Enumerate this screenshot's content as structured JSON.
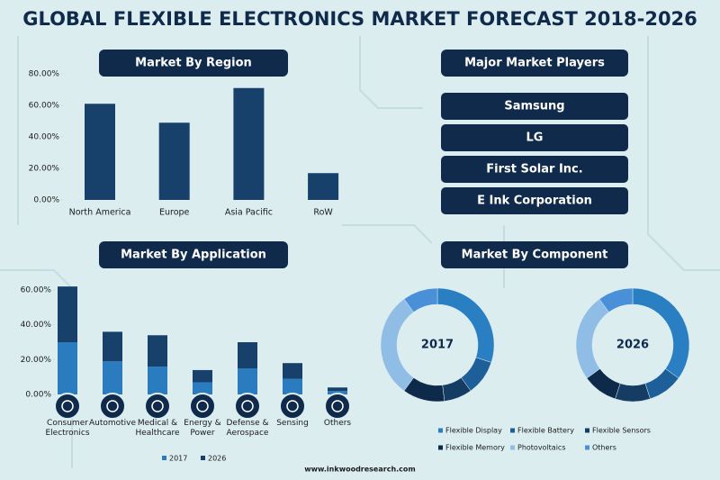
{
  "title": "GLOBAL FLEXIBLE ELECTRONICS MARKET FORECAST 2018-2026",
  "players": {
    "title": "Major Market Players",
    "items": [
      "Samsung",
      "LG",
      "First Solar Inc.",
      "E Ink Corporation"
    ]
  },
  "website": "www.inkwoodresearch.com",
  "chart_data": [
    {
      "type": "bar",
      "title": "Market By Region",
      "categories": [
        "North America",
        "Europe",
        "Asia Pacific",
        "RoW"
      ],
      "values": [
        61,
        49,
        71,
        17
      ],
      "color": "#17406b",
      "ylim": [
        0,
        80
      ],
      "yticks": [
        {
          "value": 0,
          "label": "0.00%"
        },
        {
          "value": 20,
          "label": "20.00%"
        },
        {
          "value": 40,
          "label": "40.00%"
        },
        {
          "value": 60,
          "label": "60.00%"
        },
        {
          "value": 80,
          "label": "80.00%"
        }
      ]
    },
    {
      "type": "stacked_bar",
      "title": "Market By Application",
      "categories": [
        "Consumer Electronics",
        "Automotive",
        "Medical & Healthcare",
        "Energy & Power",
        "Defense & Aerospace",
        "Sensing",
        "Others"
      ],
      "series": [
        {
          "name": "2017",
          "color": "#2b7bbf",
          "values": [
            30,
            19,
            16,
            7,
            15,
            9,
            2
          ]
        },
        {
          "name": "2026",
          "color": "#17406b",
          "values": [
            32,
            17,
            18,
            7,
            15,
            9,
            2
          ]
        }
      ],
      "ylim": [
        0,
        60
      ],
      "yticks": [
        {
          "value": 0,
          "label": "0.00%"
        },
        {
          "value": 20,
          "label": "20.00%"
        },
        {
          "value": 40,
          "label": "40.00%"
        },
        {
          "value": 60,
          "label": "60.00%"
        }
      ]
    },
    {
      "type": "donut",
      "title": "Market By Component",
      "categories": [
        "Flexible Display",
        "Flexible Battery",
        "Flexible Sensors",
        "Flexible Memory",
        "Photovoltaics",
        "Others"
      ],
      "colors": [
        "#2a7fc2",
        "#1f5f99",
        "#153d63",
        "#0d2a4a",
        "#8fbde6",
        "#4a90d9"
      ],
      "series": [
        {
          "name": "2017",
          "values": [
            30,
            10,
            8,
            12,
            30,
            10
          ]
        },
        {
          "name": "2026",
          "values": [
            35,
            10,
            10,
            10,
            25,
            10
          ]
        }
      ]
    }
  ]
}
